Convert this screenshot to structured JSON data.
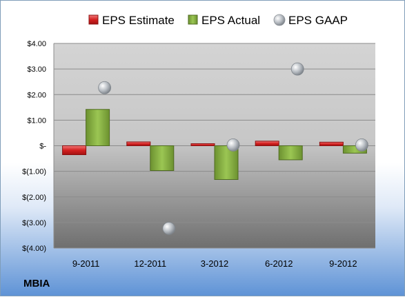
{
  "company": "MBIA",
  "chart_data": {
    "type": "bar",
    "categories": [
      "9-2011",
      "12-2011",
      "3-2012",
      "6-2012",
      "9-2012"
    ],
    "series": [
      {
        "name": "EPS Estimate",
        "kind": "bar",
        "color": "#d92b2b",
        "values": [
          -0.35,
          0.15,
          0.08,
          0.18,
          0.14
        ]
      },
      {
        "name": "EPS Actual",
        "kind": "bar",
        "color": "#7fa43a",
        "values": [
          1.42,
          -0.97,
          -1.32,
          -0.55,
          -0.29
        ]
      },
      {
        "name": "EPS GAAP",
        "kind": "marker",
        "color": "#b8bec6",
        "values": [
          2.27,
          -3.23,
          0.03,
          3.0,
          0.03
        ]
      }
    ],
    "ylim": [
      -4,
      4
    ],
    "y_ticks": [
      {
        "value": 4,
        "label": "$4.00"
      },
      {
        "value": 3,
        "label": "$3.00"
      },
      {
        "value": 2,
        "label": "$2.00"
      },
      {
        "value": 1,
        "label": "$1.00"
      },
      {
        "value": 0,
        "label": "$-"
      },
      {
        "value": -1,
        "label": "$(1.00)"
      },
      {
        "value": -2,
        "label": "$(2.00)"
      },
      {
        "value": -3,
        "label": "$(3.00)"
      },
      {
        "value": -4,
        "label": "$(4.00)"
      }
    ],
    "grid": true,
    "legend_position": "top"
  }
}
